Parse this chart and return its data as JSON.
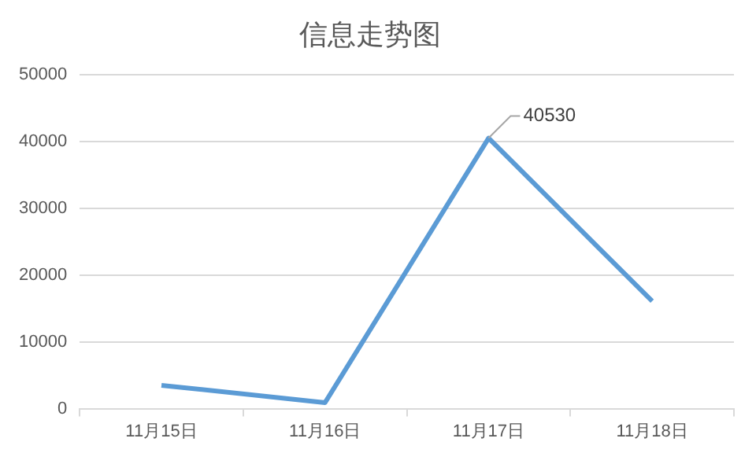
{
  "chart_data": {
    "type": "line",
    "title": "信息走势图",
    "categories": [
      "11月15日",
      "11月16日",
      "11月17日",
      "11月18日"
    ],
    "series": [
      {
        "color": "#5b9bd5",
        "values": [
          3500,
          900,
          40530,
          16100
        ]
      }
    ],
    "ylim": [
      0,
      50000
    ],
    "yticks": [
      0,
      10000,
      20000,
      30000,
      40000,
      50000
    ],
    "grid": "y",
    "legend": false,
    "marker": "none",
    "line_style": "solid",
    "annotations": [
      {
        "text": "40530",
        "x": "11月17日",
        "y": 40530
      }
    ]
  }
}
